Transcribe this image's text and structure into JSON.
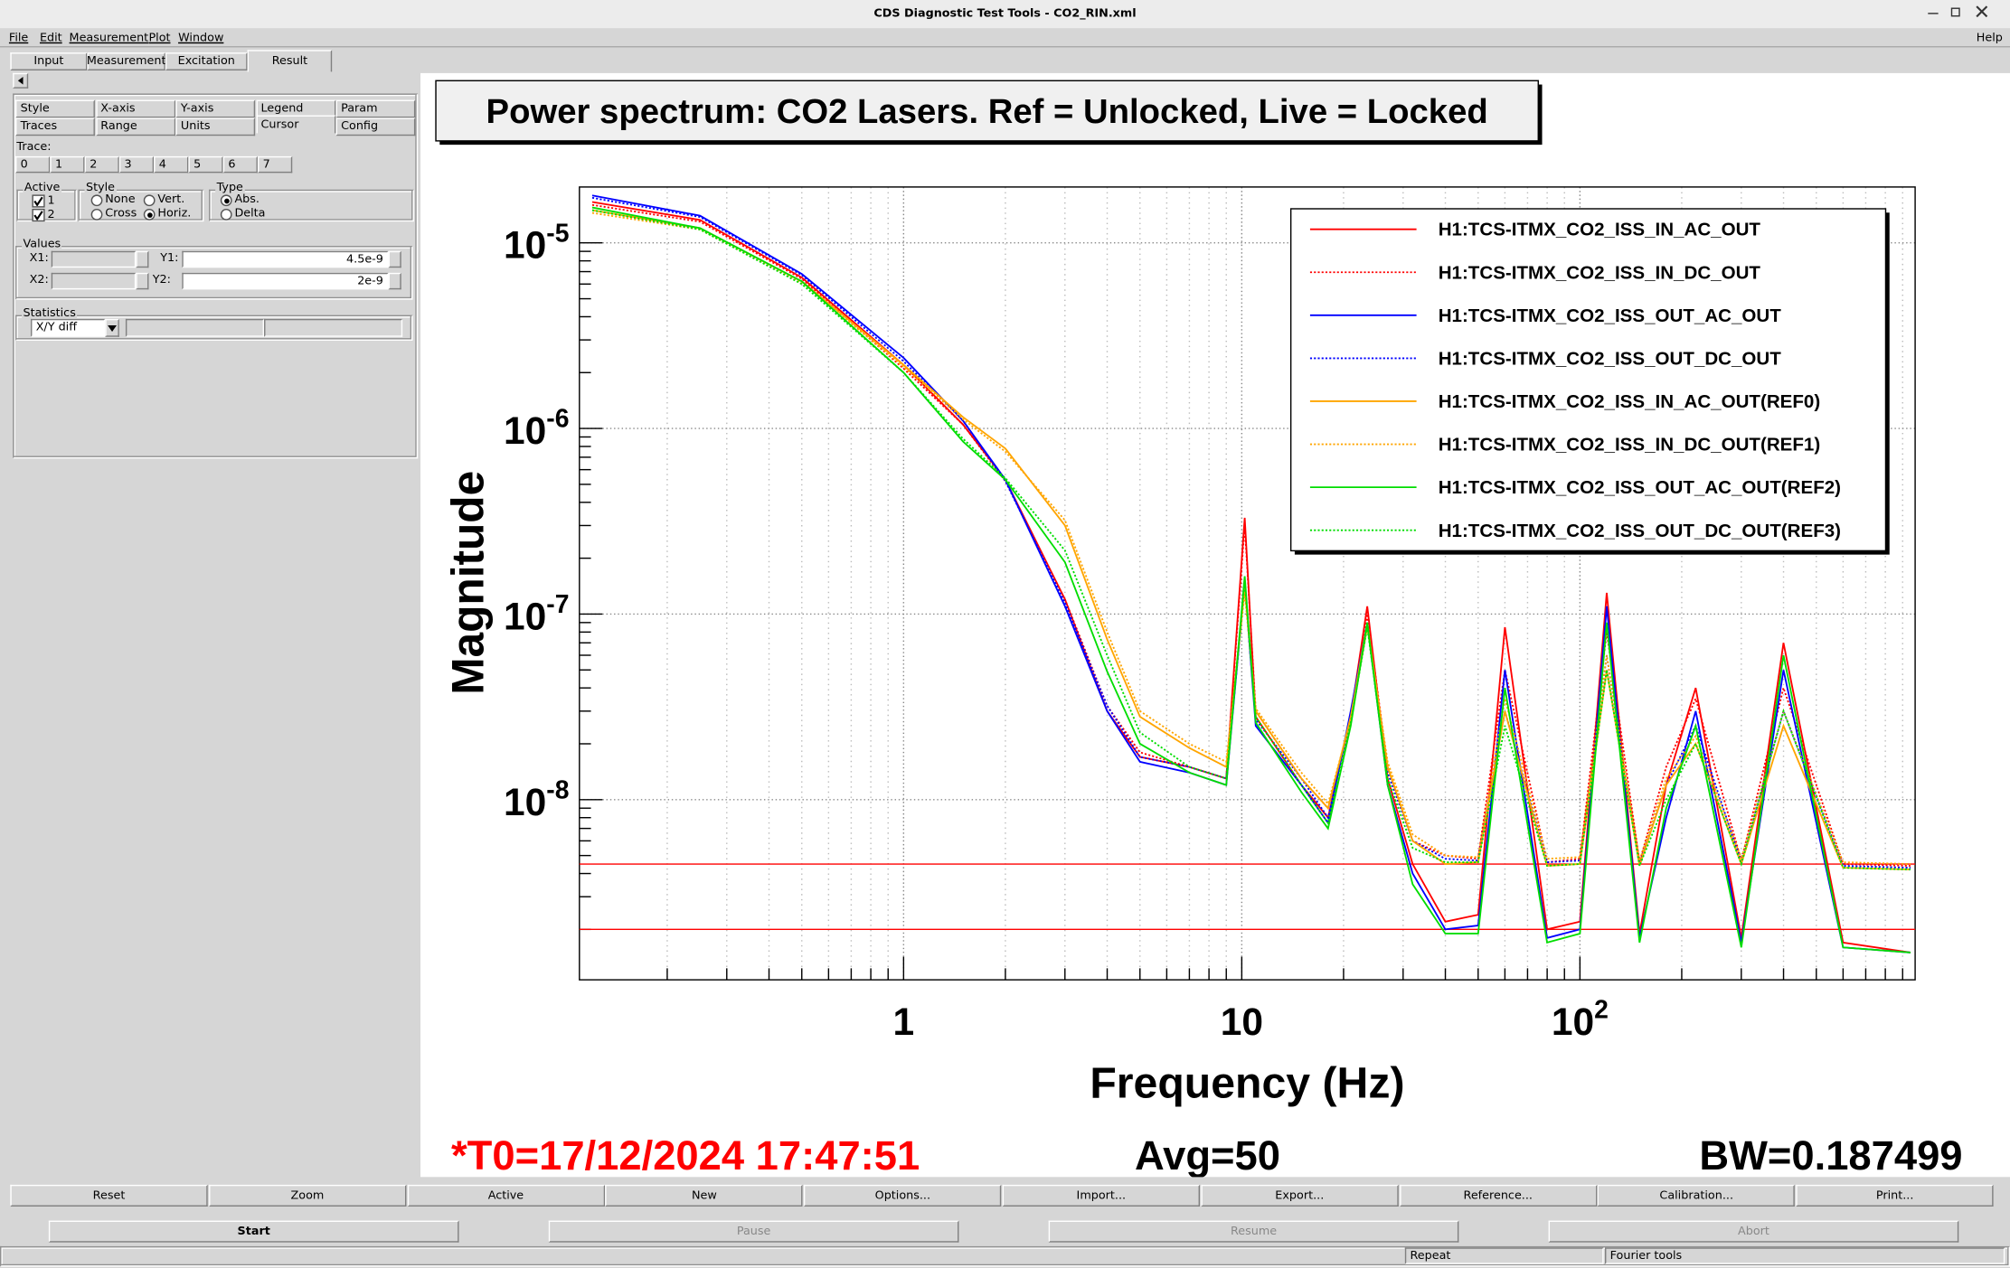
{
  "window": {
    "title": "CDS Diagnostic Test Tools - CO2_RIN.xml"
  },
  "menu": [
    "File",
    "Edit",
    "Measurement",
    "Plot",
    "Window"
  ],
  "help": "Help",
  "tabs": [
    "Input",
    "Measurement",
    "Excitation",
    "Result"
  ],
  "subtabs": [
    [
      "Style",
      "X-axis",
      "Y-axis",
      "Legend",
      "Param"
    ],
    [
      "Traces",
      "Range",
      "Units",
      "Cursor",
      "Config"
    ]
  ],
  "trace": {
    "label": "Trace:",
    "numbers": [
      "0",
      "1",
      "2",
      "3",
      "4",
      "5",
      "6",
      "7"
    ]
  },
  "active": {
    "label": "Active",
    "items": [
      "1",
      "2"
    ]
  },
  "style": {
    "label": "Style",
    "options": [
      "None",
      "Vert.",
      "Cross",
      "Horiz."
    ]
  },
  "cursor_type": {
    "label": "Type",
    "options": [
      "Abs.",
      "Delta"
    ]
  },
  "values": {
    "label": "Values",
    "x1": "X1:",
    "y1": "Y1:",
    "x2": "X2:",
    "y2": "Y2:"
  },
  "statistics": {
    "label": "Statistics",
    "select": "X/Y diff"
  },
  "buttons": [
    "Reset",
    "Zoom",
    "Active",
    "New",
    "Options...",
    "Import...",
    "Export...",
    "Reference...",
    "Calibration...",
    "Print..."
  ],
  "controls": [
    "Start",
    "Pause",
    "Resume",
    "Abort"
  ],
  "status": [
    "Repeat",
    "Fourier tools"
  ],
  "chart_data": {
    "type": "line",
    "title": "Power spectrum: CO2 Lasers. Ref = Unlocked, Live = Locked",
    "x_label": "Frequency (Hz)",
    "y_label": "Magnitude",
    "xscale": "log",
    "yscale": "log",
    "xlim": [
      0.11,
      980
    ],
    "ylim": [
      1.07e-09,
      2e-05
    ],
    "xticks": [
      1,
      10,
      {
        "value": 100,
        "label": "10",
        "sup": "2"
      }
    ],
    "yticks": [
      {
        "value": 1e-05,
        "label": "10",
        "sup": "-5"
      },
      {
        "value": 1e-06,
        "label": "10",
        "sup": "-6"
      },
      {
        "value": 1e-07,
        "label": "10",
        "sup": "-7"
      },
      {
        "value": 1e-08,
        "label": "10",
        "sup": "-8"
      }
    ],
    "grid": true,
    "legend": "upper right",
    "cursors": {
      "y1": 4.5e-09,
      "y2": 2e-09,
      "color": "#ff0000"
    },
    "footer": {
      "t0": "*T0=17/12/2024 17:47:51",
      "avg": "Avg=50",
      "bw": "BW=0.187499"
    },
    "x": [
      0.12,
      0.25,
      0.5,
      1,
      1.5,
      2,
      3,
      4,
      5,
      7,
      9,
      10.2,
      11,
      15,
      18,
      21,
      23.5,
      27,
      32,
      40,
      50,
      60,
      80,
      100,
      120,
      150,
      180,
      220,
      300,
      400,
      600,
      950
    ],
    "series": [
      {
        "name": "H1:TCS-ITMX_CO2_ISS_IN_AC_OUT",
        "color": "#ff0000",
        "style": "solid",
        "values": [
          1.66e-05,
          1.33e-05,
          6.5e-06,
          2.2e-06,
          1.05e-06,
          5.3e-07,
          1.2e-07,
          3e-08,
          1.7e-08,
          1.5e-08,
          1.3e-08,
          3.3e-07,
          2.8e-08,
          1.2e-08,
          8e-09,
          2.8e-08,
          1.1e-07,
          1.3e-08,
          4.5e-09,
          2.2e-09,
          2.4e-09,
          8.5e-08,
          2e-09,
          2.2e-09,
          1.3e-07,
          1.9e-09,
          1.2e-08,
          4e-08,
          1.8e-09,
          7e-08,
          1.7e-09,
          1.5e-09
        ]
      },
      {
        "name": "H1:TCS-ITMX_CO2_ISS_IN_DC_OUT",
        "color": "#ff0000",
        "style": "dotted",
        "values": [
          1.6e-05,
          1.3e-05,
          6.4e-06,
          2.1e-06,
          1.05e-06,
          5.2e-07,
          1.2e-07,
          3.2e-08,
          1.8e-08,
          1.5e-08,
          1.3e-08,
          3e-07,
          3e-08,
          1.3e-08,
          9e-09,
          2.6e-08,
          1e-07,
          1.5e-08,
          6e-09,
          5e-09,
          4.8e-09,
          5e-08,
          4.6e-09,
          4.8e-09,
          8e-08,
          4.6e-09,
          1.5e-08,
          3.5e-08,
          4.7e-09,
          4e-08,
          4.5e-09,
          4.4e-09
        ]
      },
      {
        "name": "H1:TCS-ITMX_CO2_ISS_OUT_AC_OUT",
        "color": "#0000ff",
        "style": "solid",
        "values": [
          1.8e-05,
          1.4e-05,
          6.8e-06,
          2.4e-06,
          1.1e-06,
          5.3e-07,
          1.1e-07,
          3e-08,
          1.6e-08,
          1.4e-08,
          1.2e-08,
          1.5e-07,
          2.5e-08,
          1.2e-08,
          7.5e-09,
          3e-08,
          9e-08,
          1.2e-08,
          4e-09,
          2e-09,
          2.1e-09,
          5e-08,
          1.8e-09,
          2e-09,
          1.1e-07,
          1.8e-09,
          8e-09,
          3e-08,
          1.7e-09,
          5e-08,
          1.6e-09,
          1.5e-09
        ]
      },
      {
        "name": "H1:TCS-ITMX_CO2_ISS_OUT_DC_OUT",
        "color": "#0000ff",
        "style": "dotted",
        "values": [
          1.75e-05,
          1.38e-05,
          6.7e-06,
          2.3e-06,
          1.1e-06,
          5.2e-07,
          1.15e-07,
          3.2e-08,
          1.7e-08,
          1.5e-08,
          1.3e-08,
          1.4e-07,
          2.7e-08,
          1.3e-08,
          8e-09,
          2.8e-08,
          9e-08,
          1.4e-08,
          6e-09,
          4.8e-09,
          4.7e-09,
          3e-08,
          4.6e-09,
          4.7e-09,
          6e-08,
          4.5e-09,
          1.2e-08,
          2.5e-08,
          4.6e-09,
          3e-08,
          4.4e-09,
          4.3e-09
        ]
      },
      {
        "name": "H1:TCS-ITMX_CO2_ISS_IN_AC_OUT(REF0)",
        "color": "#ffa500",
        "style": "solid",
        "values": [
          1.5e-05,
          1.2e-05,
          6.2e-06,
          2.2e-06,
          1.15e-06,
          7.8e-07,
          3e-07,
          7.3e-08,
          2.8e-08,
          1.9e-08,
          1.5e-08,
          1.4e-07,
          3e-08,
          1.3e-08,
          9e-09,
          2.8e-08,
          9e-08,
          1.5e-08,
          6e-09,
          4.5e-09,
          4.6e-09,
          3e-08,
          4.4e-09,
          4.5e-09,
          5e-08,
          4.4e-09,
          1.2e-08,
          2e-08,
          4.5e-09,
          2.5e-08,
          4.3e-09,
          4.2e-09
        ]
      },
      {
        "name": "H1:TCS-ITMX_CO2_ISS_IN_DC_OUT(REF1)",
        "color": "#ffa500",
        "style": "dotted",
        "values": [
          1.45e-05,
          1.18e-05,
          6.1e-06,
          2.15e-06,
          1.12e-06,
          7.5e-07,
          3.2e-07,
          8e-08,
          3e-08,
          2e-08,
          1.6e-08,
          1.3e-07,
          3.1e-08,
          1.4e-08,
          9.5e-09,
          2.7e-08,
          8.5e-08,
          1.6e-08,
          6.5e-09,
          5e-09,
          4.9e-09,
          3.5e-08,
          4.8e-09,
          4.9e-09,
          6e-08,
          4.7e-09,
          1.3e-08,
          2.2e-08,
          4.8e-09,
          3e-08,
          4.6e-09,
          4.5e-09
        ]
      },
      {
        "name": "H1:TCS-ITMX_CO2_ISS_OUT_AC_OUT(REF2)",
        "color": "#00dd00",
        "style": "solid",
        "values": [
          1.55e-05,
          1.2e-05,
          6.2e-06,
          2e-06,
          8.5e-07,
          5.3e-07,
          1.9e-07,
          4.9e-08,
          2e-08,
          1.4e-08,
          1.2e-08,
          1.6e-07,
          2.6e-08,
          1.1e-08,
          7e-09,
          2.5e-08,
          9e-08,
          1.2e-08,
          3.5e-09,
          1.9e-09,
          1.9e-09,
          4e-08,
          1.7e-09,
          1.9e-09,
          9e-08,
          1.7e-09,
          9e-09,
          2.5e-08,
          1.6e-09,
          6e-08,
          1.6e-09,
          1.5e-09
        ]
      },
      {
        "name": "H1:TCS-ITMX_CO2_ISS_OUT_DC_OUT(REF3)",
        "color": "#00dd00",
        "style": "dotted",
        "values": [
          1.5e-05,
          1.18e-05,
          6e-06,
          2e-06,
          8.8e-07,
          5.4e-07,
          2.2e-07,
          6e-08,
          2.3e-08,
          1.5e-08,
          1.3e-08,
          1.5e-07,
          2.8e-08,
          1.2e-08,
          7.5e-09,
          2.6e-08,
          8.5e-08,
          1.3e-08,
          5.5e-09,
          4.6e-09,
          4.6e-09,
          2.5e-08,
          4.4e-09,
          4.5e-09,
          5e-08,
          4.4e-09,
          1e-08,
          2e-08,
          4.5e-09,
          3e-08,
          4.3e-09,
          4.2e-09
        ]
      }
    ]
  }
}
